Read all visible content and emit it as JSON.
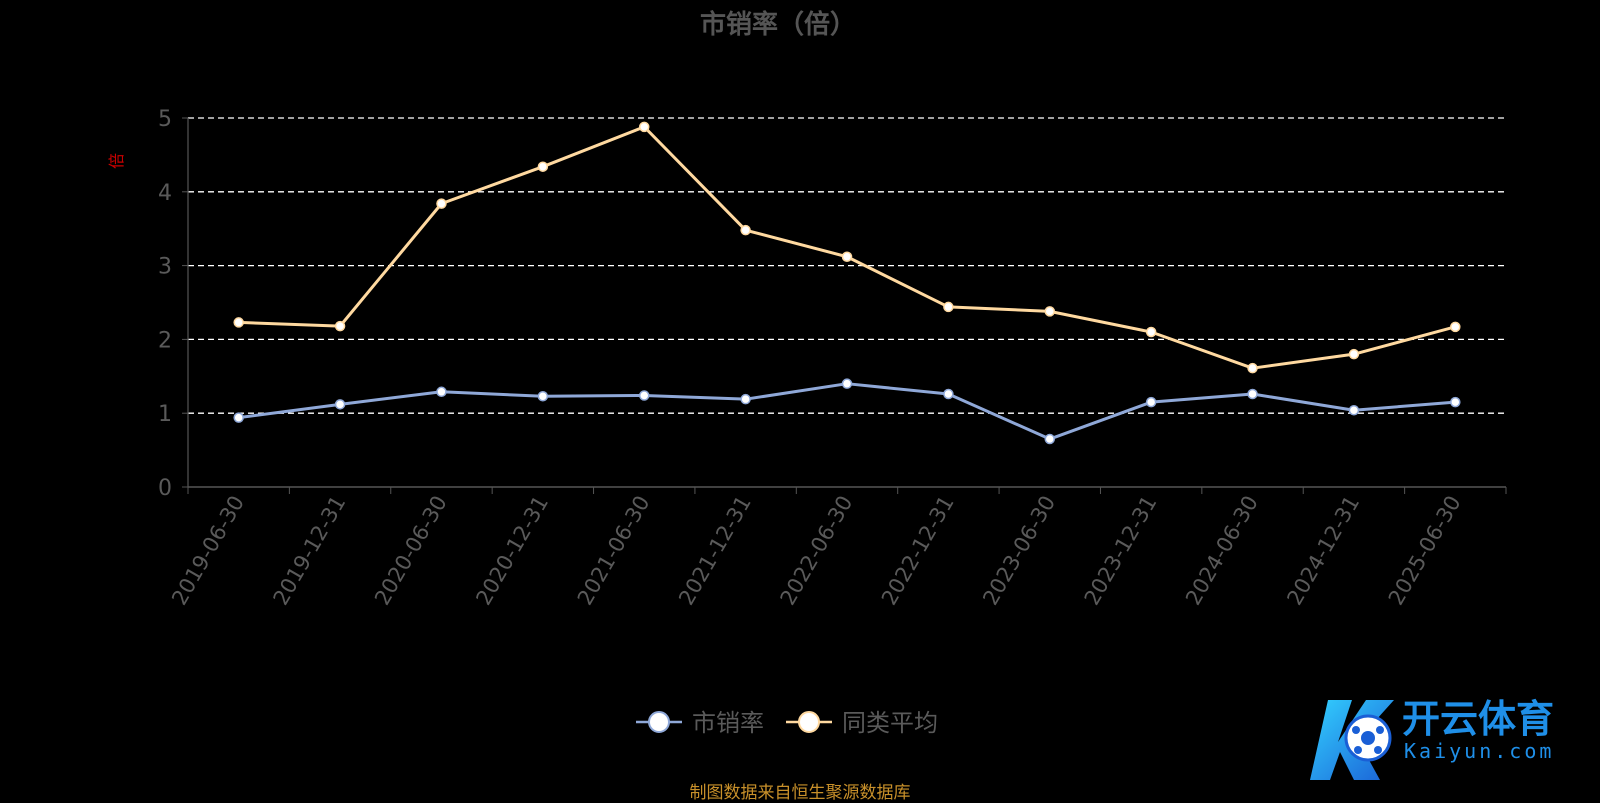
{
  "colors": {
    "background": "#000000",
    "series_1": "#8fa8d8",
    "series_2": "#ffd9a0",
    "title": "#555555",
    "axis_text": "#5a5a5a",
    "ylabel": "#cc0000",
    "grid": "#ffffff",
    "footnote": "#c8902a"
  },
  "footnote": "制图数据来自恒生聚源数据库",
  "watermark": {
    "cn": "开云体育",
    "en": "Kaiyun.com",
    "icon": "kaiyun-logo-icon"
  },
  "chart_data": {
    "type": "line",
    "title": "市销率（倍）",
    "xlabel": "",
    "ylabel": "倍",
    "ylim": [
      0,
      5
    ],
    "yticks": [
      "0",
      "1",
      "2",
      "3",
      "4",
      "5"
    ],
    "grid": true,
    "legend": "bottom-center",
    "categories": [
      "2019-06-30",
      "2019-12-31",
      "2020-06-30",
      "2020-12-31",
      "2021-06-30",
      "2021-12-31",
      "2022-06-30",
      "2022-12-31",
      "2023-06-30",
      "2023-12-31",
      "2024-06-30",
      "2024-12-31",
      "2025-06-30"
    ],
    "series": [
      {
        "name": "市销率",
        "color": "#8fa8d8",
        "values": [
          0.94,
          1.12,
          1.29,
          1.23,
          1.24,
          1.19,
          1.4,
          1.26,
          0.65,
          1.15,
          1.26,
          1.04,
          1.15
        ]
      },
      {
        "name": "同类平均",
        "color": "#ffd9a0",
        "values": [
          2.23,
          2.18,
          3.84,
          4.34,
          4.88,
          3.48,
          3.12,
          2.44,
          2.38,
          2.1,
          1.61,
          1.8,
          2.17
        ]
      }
    ]
  }
}
